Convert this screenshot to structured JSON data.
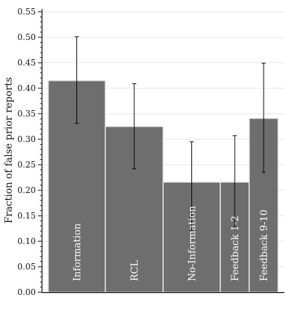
{
  "chart_data": {
    "type": "bar",
    "ylabel": "Fraction of false prior reports",
    "xlabel": "",
    "ylim": [
      0,
      0.55
    ],
    "yticks": [
      "0.00",
      "0.05",
      "0.10",
      "0.15",
      "0.20",
      "0.25",
      "0.30",
      "0.35",
      "0.40",
      "0.45",
      "0.50",
      "0.55"
    ],
    "grid": true,
    "bar_color": "#6e6e6e",
    "error_color": "#000000",
    "categories": [
      "Information",
      "RCL",
      "No-Information",
      "Feedback 1-2",
      "Feedback 9-10"
    ],
    "values": [
      0.415,
      0.325,
      0.216,
      0.216,
      0.341
    ],
    "error_low": [
      0.331,
      0.242,
      0.122,
      0.127,
      0.235
    ],
    "error_high": [
      0.501,
      0.409,
      0.295,
      0.307,
      0.449
    ]
  }
}
